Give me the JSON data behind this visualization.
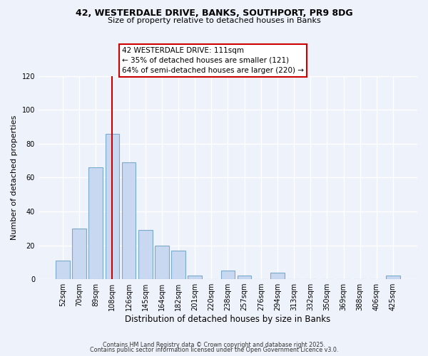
{
  "title1": "42, WESTERDALE DRIVE, BANKS, SOUTHPORT, PR9 8DG",
  "title2": "Size of property relative to detached houses in Banks",
  "xlabel": "Distribution of detached houses by size in Banks",
  "ylabel": "Number of detached properties",
  "bar_labels": [
    "52sqm",
    "70sqm",
    "89sqm",
    "108sqm",
    "126sqm",
    "145sqm",
    "164sqm",
    "182sqm",
    "201sqm",
    "220sqm",
    "238sqm",
    "257sqm",
    "276sqm",
    "294sqm",
    "313sqm",
    "332sqm",
    "350sqm",
    "369sqm",
    "388sqm",
    "406sqm",
    "425sqm"
  ],
  "bar_values": [
    11,
    30,
    66,
    86,
    69,
    29,
    20,
    17,
    2,
    0,
    5,
    2,
    0,
    4,
    0,
    0,
    0,
    0,
    0,
    0,
    2
  ],
  "bar_color": "#c8d8f0",
  "bar_edge_color": "#7aabcc",
  "vline_x_index": 3,
  "vline_color": "#cc0000",
  "annotation_title": "42 WESTERDALE DRIVE: 111sqm",
  "annotation_line1": "← 35% of detached houses are smaller (121)",
  "annotation_line2": "64% of semi-detached houses are larger (220) →",
  "annotation_box_edge": "#cc0000",
  "ylim": [
    0,
    120
  ],
  "yticks": [
    0,
    20,
    40,
    60,
    80,
    100,
    120
  ],
  "footer1": "Contains HM Land Registry data © Crown copyright and database right 2025.",
  "footer2": "Contains public sector information licensed under the Open Government Licence v3.0.",
  "bg_color": "#eef2fa",
  "grid_color": "#ffffff"
}
